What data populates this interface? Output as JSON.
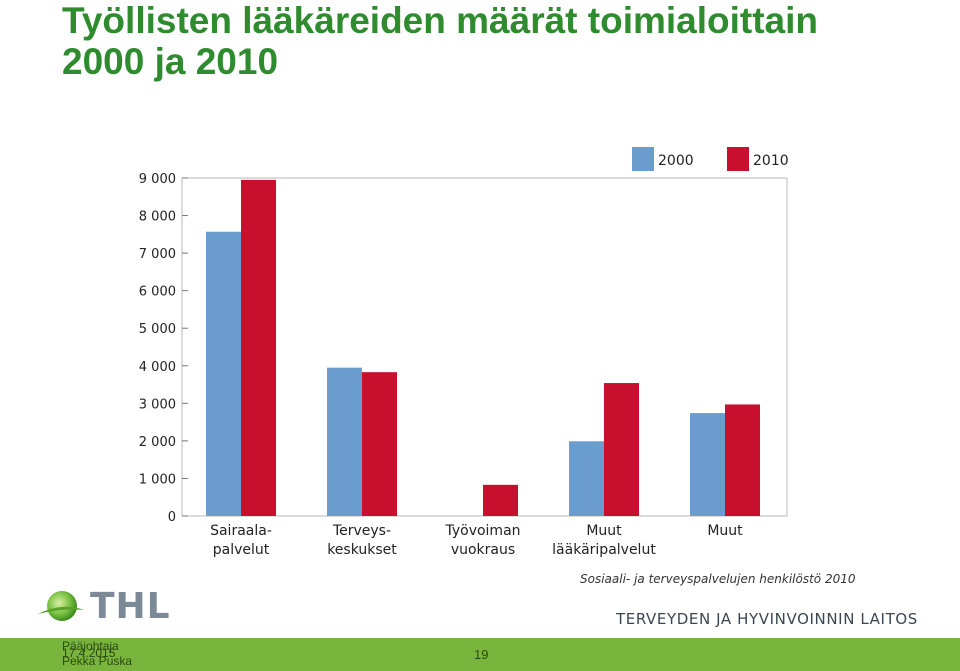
{
  "slide": {
    "title_line1": "Työllisten lääkäreiden määrät toimialoittain",
    "title_line2": "2000 ja 2010",
    "source": "Sosiaali- ja terveyspalvelujen henkilöstö 2010",
    "logo_text": "THL",
    "institute": "TERVEYDEN JA HYVINVOINNIN LAITOS",
    "footer_line1": "Pääjohtaja",
    "footer_line2": "17.4.2015",
    "footer_line3": "Pekka Puska",
    "page_number": "19",
    "colors": {
      "title": "#2e8b2e",
      "footer": "#79b53c"
    }
  },
  "chart_data": {
    "type": "bar",
    "title": "",
    "xlabel": "",
    "ylabel": "",
    "ylim": [
      0,
      9000
    ],
    "yticks": [
      0,
      1000,
      2000,
      3000,
      4000,
      5000,
      6000,
      7000,
      8000,
      9000
    ],
    "ytick_labels": [
      "0",
      "1 000",
      "2 000",
      "3 000",
      "4 000",
      "5 000",
      "6 000",
      "7 000",
      "8 000",
      "9 000"
    ],
    "categories": [
      [
        "Sairaala-",
        "palvelut"
      ],
      [
        "Terveys-",
        "keskukset"
      ],
      [
        "Työvoiman",
        "vuokraus"
      ],
      [
        "Muut",
        "lääkäripalvelut"
      ],
      [
        "Muut"
      ]
    ],
    "series": [
      {
        "name": "2000",
        "color": "#6a9ccd",
        "values": [
          7570,
          3950,
          0,
          1990,
          2740
        ]
      },
      {
        "name": "2010",
        "color": "#c8102e",
        "values": [
          8950,
          3830,
          830,
          3540,
          2970
        ]
      }
    ],
    "legend_position": "top-right",
    "grid": false
  }
}
